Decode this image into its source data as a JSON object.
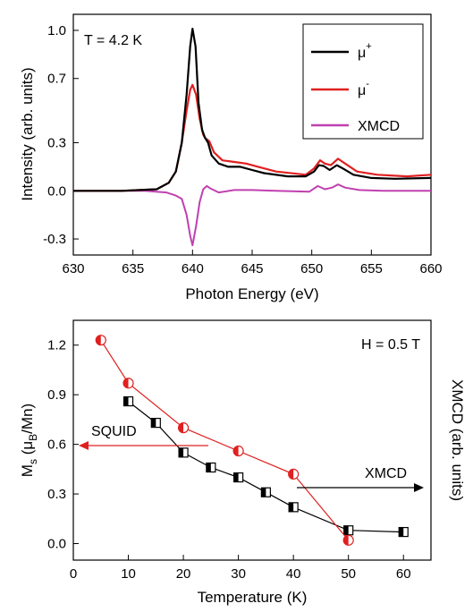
{
  "chart_data": [
    {
      "type": "line",
      "xlabel": "Photon Energy (eV)",
      "ylabel": "Intensity (arb. units)",
      "xlim": [
        630,
        660
      ],
      "ylim": [
        -0.4,
        1.1
      ],
      "xticks": [
        630,
        635,
        640,
        645,
        650,
        655,
        660
      ],
      "xtick_labels": [
        "630",
        "635",
        "640",
        "645",
        "650",
        "655",
        "660"
      ],
      "yticks": [
        -0.3,
        0.0,
        0.3,
        0.7,
        1.0
      ],
      "ytick_labels": [
        "-0.3",
        "0.0",
        "0.3",
        "0.7",
        "1.0"
      ],
      "annotation": "T = 4.2 K",
      "legend": {
        "position": "top-right",
        "entries": [
          {
            "base": "μ",
            "sup": "+",
            "color": "#000000"
          },
          {
            "base": "μ",
            "sup": "-",
            "color": "#e02020"
          },
          {
            "base": "XMCD",
            "sup": "",
            "color": "#c040b0"
          }
        ]
      },
      "series": [
        {
          "color": "#000000",
          "points": [
            [
              630,
              0.0
            ],
            [
              634,
              0.0
            ],
            [
              637,
              0.01
            ],
            [
              638,
              0.05
            ],
            [
              638.6,
              0.12
            ],
            [
              639.1,
              0.3
            ],
            [
              639.5,
              0.6
            ],
            [
              639.8,
              0.9
            ],
            [
              640.0,
              1.01
            ],
            [
              640.25,
              0.9
            ],
            [
              640.5,
              0.55
            ],
            [
              640.8,
              0.38
            ],
            [
              641.05,
              0.33
            ],
            [
              641.3,
              0.3
            ],
            [
              641.6,
              0.22
            ],
            [
              642.2,
              0.17
            ],
            [
              643,
              0.15
            ],
            [
              644,
              0.15
            ],
            [
              645,
              0.13
            ],
            [
              646,
              0.11
            ],
            [
              648,
              0.09
            ],
            [
              649.5,
              0.09
            ],
            [
              650.2,
              0.12
            ],
            [
              650.6,
              0.16
            ],
            [
              651.0,
              0.155
            ],
            [
              651.5,
              0.13
            ],
            [
              652.1,
              0.16
            ],
            [
              652.6,
              0.14
            ],
            [
              653.5,
              0.1
            ],
            [
              655,
              0.08
            ],
            [
              657,
              0.075
            ],
            [
              660,
              0.08
            ]
          ]
        },
        {
          "color": "#e02020",
          "points": [
            [
              630,
              0.0
            ],
            [
              634,
              0.0
            ],
            [
              637,
              0.01
            ],
            [
              638,
              0.05
            ],
            [
              638.6,
              0.12
            ],
            [
              639.1,
              0.3
            ],
            [
              639.5,
              0.5
            ],
            [
              639.8,
              0.63
            ],
            [
              640.0,
              0.66
            ],
            [
              640.3,
              0.6
            ],
            [
              640.6,
              0.45
            ],
            [
              640.9,
              0.35
            ],
            [
              641.05,
              0.33
            ],
            [
              641.4,
              0.31
            ],
            [
              641.8,
              0.24
            ],
            [
              642.5,
              0.19
            ],
            [
              643.5,
              0.18
            ],
            [
              644.5,
              0.17
            ],
            [
              645.5,
              0.15
            ],
            [
              647,
              0.12
            ],
            [
              649.5,
              0.1
            ],
            [
              650.2,
              0.14
            ],
            [
              650.7,
              0.19
            ],
            [
              651.1,
              0.17
            ],
            [
              651.6,
              0.16
            ],
            [
              652.2,
              0.2
            ],
            [
              652.8,
              0.17
            ],
            [
              653.8,
              0.12
            ],
            [
              655.5,
              0.1
            ],
            [
              658,
              0.09
            ],
            [
              660,
              0.1
            ]
          ]
        },
        {
          "color": "#c040b0",
          "points": [
            [
              630,
              0.0
            ],
            [
              636,
              0.0
            ],
            [
              637.8,
              -0.01
            ],
            [
              638.6,
              -0.03
            ],
            [
              639.1,
              -0.05
            ],
            [
              639.5,
              -0.15
            ],
            [
              639.8,
              -0.28
            ],
            [
              640.0,
              -0.34
            ],
            [
              640.3,
              -0.22
            ],
            [
              640.6,
              -0.07
            ],
            [
              640.9,
              0.01
            ],
            [
              641.2,
              0.03
            ],
            [
              641.5,
              0.015
            ],
            [
              642.2,
              -0.01
            ],
            [
              643.5,
              0.005
            ],
            [
              645,
              0.005
            ],
            [
              647,
              0.0
            ],
            [
              649.8,
              -0.005
            ],
            [
              650.5,
              0.03
            ],
            [
              651.1,
              0.01
            ],
            [
              651.7,
              0.02
            ],
            [
              652.2,
              0.04
            ],
            [
              652.8,
              0.02
            ],
            [
              654,
              0.005
            ],
            [
              656,
              0.0
            ],
            [
              660,
              0.0
            ]
          ]
        }
      ]
    },
    {
      "type": "scatter",
      "xlabel": "Temperature (K)",
      "ylabel_base": "M",
      "ylabel_sub1": "s",
      "ylabel_mid": " (μ",
      "ylabel_sub2": "B",
      "ylabel_tail": "/Mn)",
      "ylabel_right": "XMCD (arb. units)",
      "xlim": [
        0,
        65
      ],
      "ylim": [
        -0.1,
        1.35
      ],
      "xticks": [
        0,
        10,
        20,
        30,
        40,
        50,
        60
      ],
      "xtick_labels": [
        "0",
        "10",
        "20",
        "30",
        "40",
        "50",
        "60"
      ],
      "yticks": [
        0.0,
        0.3,
        0.6,
        0.9,
        1.2
      ],
      "ytick_labels": [
        "0.0",
        "0.3",
        "0.6",
        "0.9",
        "1.2"
      ],
      "annotation": "H = 0.5 T",
      "arrow_left_label": "SQUID",
      "arrow_right_label": "XMCD",
      "series": [
        {
          "marker": "half-filled-square",
          "color": "#000000",
          "x": [
            10,
            15,
            20,
            25,
            30,
            35,
            40,
            50,
            60
          ],
          "y": [
            0.86,
            0.73,
            0.55,
            0.46,
            0.4,
            0.31,
            0.22,
            0.08,
            0.07
          ]
        },
        {
          "marker": "half-filled-circle",
          "color": "#e02020",
          "x": [
            5,
            10,
            20,
            30,
            40,
            50
          ],
          "y": [
            1.23,
            0.97,
            0.7,
            0.56,
            0.42,
            0.02
          ]
        }
      ]
    }
  ]
}
